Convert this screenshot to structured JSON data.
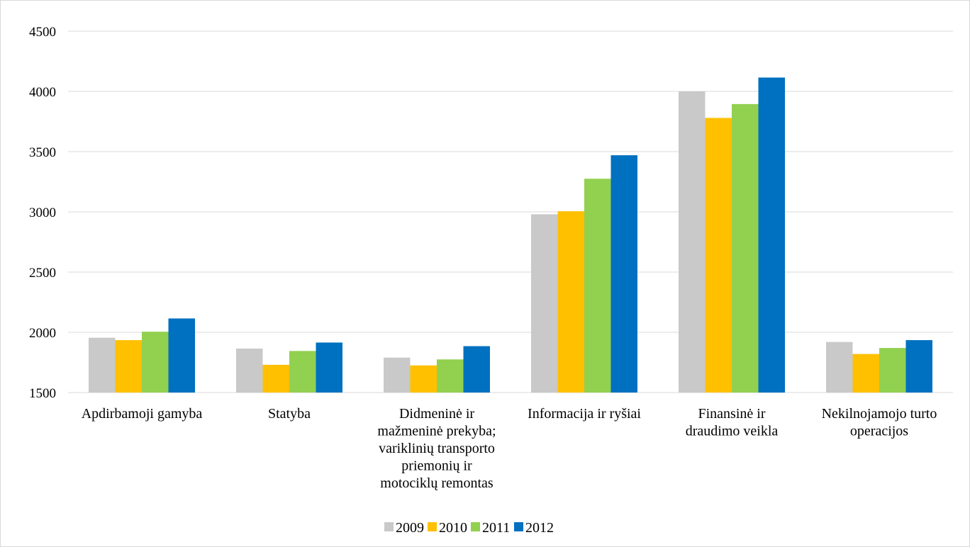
{
  "chart_data": {
    "type": "bar",
    "title": "",
    "xlabel": "",
    "ylabel": "",
    "ylim": [
      1500,
      4500
    ],
    "yticks": [
      1500,
      2000,
      2500,
      3000,
      3500,
      4000,
      4500
    ],
    "grid": true,
    "legend_position": "bottom",
    "categories": [
      [
        "Apdirbamoji gamyba"
      ],
      [
        "Statyba"
      ],
      [
        "Didmeninė ir",
        "mažmeninė prekyba;",
        "variklinių transporto",
        "priemonių ir",
        "motociklų remontas"
      ],
      [
        "Informacija ir ryšiai"
      ],
      [
        "Finansinė ir",
        "draudimo veikla"
      ],
      [
        "Nekilnojamojo turto",
        "operacijos"
      ]
    ],
    "series": [
      {
        "name": "2009",
        "color": "#c9c9c9",
        "values": [
          1955,
          1865,
          1790,
          2980,
          4000,
          1920
        ]
      },
      {
        "name": "2010",
        "color": "#ffc000",
        "values": [
          1935,
          1730,
          1725,
          3005,
          3780,
          1820
        ]
      },
      {
        "name": "2011",
        "color": "#92d050",
        "values": [
          2005,
          1845,
          1775,
          3275,
          3895,
          1870
        ]
      },
      {
        "name": "2012",
        "color": "#0070c0",
        "values": [
          2115,
          1915,
          1885,
          3470,
          4115,
          1935
        ]
      }
    ]
  }
}
